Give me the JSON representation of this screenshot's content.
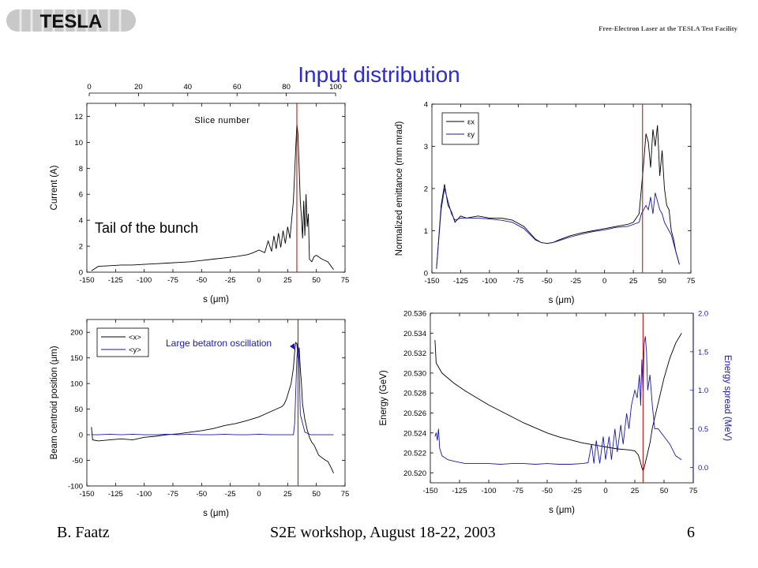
{
  "header": {
    "logo_text": "TESLA",
    "subtitle": "Free-Electron Laser at the TESLA Test Facility"
  },
  "slide": {
    "title": "Input distribution"
  },
  "footer": {
    "author": "B. Faatz",
    "event": "S2E workshop, August 18-22, 2003",
    "page": "6"
  },
  "colors": {
    "title": "#2b2bd0",
    "series_black": "#000000",
    "series_blue": "#1a1aa6",
    "marker_red": "#c00000",
    "right_axis": "#1a1aa6"
  },
  "chart_data": [
    {
      "type": "line",
      "title": "",
      "xlabel": "s (μm)",
      "ylabel": "Current (A)",
      "xlim": [
        -150,
        75
      ],
      "ylim": [
        0,
        13
      ],
      "xticks": [
        -150,
        -125,
        -100,
        -75,
        -50,
        -25,
        0,
        25,
        50,
        75
      ],
      "yticks": [
        0,
        2,
        4,
        6,
        8,
        10,
        12
      ],
      "top_axis": {
        "label": "Slice number",
        "lim": [
          0,
          100
        ],
        "ticks": [
          0,
          20,
          40,
          60,
          80,
          100
        ]
      },
      "vline": 33,
      "annotation": "Tail of the bunch",
      "series": [
        {
          "x": [
            -146,
            -140,
            -130,
            -120,
            -110,
            -100,
            -90,
            -80,
            -70,
            -60,
            -50,
            -40,
            -30,
            -20,
            -10,
            -5,
            0,
            5,
            8,
            11,
            13,
            15,
            17,
            19,
            21,
            23,
            25,
            27,
            29,
            30,
            31,
            32,
            33,
            34,
            35,
            36,
            37,
            38,
            39,
            40,
            41,
            42,
            43,
            44,
            46,
            48,
            50,
            55,
            60,
            65
          ],
          "y": [
            0.1,
            0.45,
            0.5,
            0.55,
            0.55,
            0.6,
            0.65,
            0.7,
            0.75,
            0.8,
            0.9,
            1.0,
            1.1,
            1.2,
            1.35,
            1.5,
            1.7,
            1.5,
            2.4,
            1.6,
            2.8,
            1.8,
            3.0,
            1.9,
            3.2,
            2.2,
            3.5,
            2.6,
            4.5,
            5.5,
            7.5,
            9.5,
            11.4,
            10.6,
            8.0,
            5.5,
            4.2,
            2.6,
            5.5,
            2.8,
            6.0,
            3.5,
            4.5,
            1.0,
            0.8,
            1.2,
            1.3,
            1.0,
            0.8,
            0.2
          ]
        }
      ]
    },
    {
      "type": "line",
      "title": "",
      "xlabel": "s (μm)",
      "ylabel": "Normalized emittance (mm mrad)",
      "xlim": [
        -150,
        75
      ],
      "ylim": [
        0,
        4
      ],
      "xticks": [
        -150,
        -125,
        -100,
        -75,
        -50,
        -25,
        0,
        25,
        50,
        75
      ],
      "yticks": [
        0,
        1,
        2,
        3,
        4
      ],
      "vline": 33,
      "legend": "top-left",
      "series": [
        {
          "name": "εx",
          "x": [
            -146,
            -142,
            -139,
            -136,
            -133,
            -130,
            -125,
            -120,
            -110,
            -100,
            -90,
            -80,
            -70,
            -60,
            -55,
            -50,
            -45,
            -40,
            -30,
            -20,
            -10,
            0,
            10,
            20,
            25,
            30,
            32,
            34,
            36,
            38,
            40,
            42,
            44,
            46,
            48,
            50,
            52,
            54,
            56,
            58,
            60,
            62,
            64,
            65
          ],
          "y": [
            0.1,
            1.6,
            2.1,
            1.6,
            1.45,
            1.2,
            1.35,
            1.3,
            1.35,
            1.3,
            1.3,
            1.25,
            1.1,
            0.8,
            0.72,
            0.7,
            0.72,
            0.78,
            0.88,
            0.95,
            1.0,
            1.05,
            1.1,
            1.15,
            1.2,
            1.4,
            2.0,
            2.6,
            3.3,
            3.1,
            2.5,
            3.4,
            3.0,
            3.5,
            2.3,
            2.9,
            2.0,
            1.6,
            1.5,
            1.0,
            0.8,
            0.5,
            0.3,
            0.2
          ]
        },
        {
          "name": "εy",
          "x": [
            -146,
            -142,
            -139,
            -136,
            -133,
            -130,
            -125,
            -120,
            -110,
            -100,
            -90,
            -80,
            -70,
            -60,
            -55,
            -50,
            -45,
            -40,
            -30,
            -20,
            -10,
            0,
            10,
            20,
            25,
            30,
            32,
            34,
            36,
            38,
            40,
            42,
            44,
            46,
            48,
            50,
            52,
            54,
            56,
            58,
            60,
            62,
            64,
            65
          ],
          "y": [
            0.1,
            1.5,
            2.0,
            1.7,
            1.4,
            1.25,
            1.3,
            1.3,
            1.3,
            1.28,
            1.25,
            1.2,
            1.05,
            0.78,
            0.72,
            0.7,
            0.72,
            0.76,
            0.85,
            0.92,
            0.98,
            1.02,
            1.08,
            1.1,
            1.15,
            1.2,
            1.4,
            1.5,
            1.6,
            1.5,
            1.8,
            1.4,
            1.9,
            1.7,
            1.5,
            1.4,
            1.2,
            1.1,
            1.0,
            0.9,
            0.7,
            0.5,
            0.3,
            0.2
          ]
        }
      ]
    },
    {
      "type": "line",
      "title": "",
      "xlabel": "s (μm)",
      "ylabel": "Beam centroid position (μm)",
      "xlim": [
        -150,
        75
      ],
      "ylim": [
        -100,
        225
      ],
      "xticks": [
        -150,
        -125,
        -100,
        -75,
        -50,
        -25,
        0,
        25,
        50,
        75
      ],
      "yticks": [
        -100,
        -50,
        0,
        50,
        100,
        150,
        200
      ],
      "vline": 34,
      "legend": "top-left",
      "annotation": "Large betatron oscillation",
      "series": [
        {
          "name": "<x>",
          "x": [
            -146,
            -145,
            -140,
            -130,
            -120,
            -110,
            -100,
            -90,
            -80,
            -70,
            -60,
            -50,
            -40,
            -30,
            -20,
            -10,
            0,
            5,
            10,
            15,
            20,
            22,
            24,
            26,
            28,
            30,
            31,
            32,
            33,
            34,
            35,
            36,
            37,
            38,
            40,
            42,
            44,
            46,
            48,
            50,
            52,
            55,
            58,
            60,
            63,
            65
          ],
          "y": [
            15,
            -10,
            -12,
            -10,
            -8,
            -10,
            -5,
            -3,
            0,
            2,
            5,
            8,
            12,
            18,
            22,
            28,
            35,
            40,
            45,
            50,
            55,
            60,
            70,
            85,
            100,
            130,
            160,
            180,
            178,
            150,
            170,
            130,
            100,
            60,
            30,
            10,
            -5,
            -15,
            -20,
            -30,
            -40,
            -45,
            -50,
            -52,
            -65,
            -75
          ]
        },
        {
          "name": "<y>",
          "x": [
            -146,
            -140,
            -130,
            -120,
            -110,
            -100,
            -90,
            -80,
            -70,
            -60,
            -50,
            -40,
            -30,
            -20,
            -10,
            0,
            10,
            20,
            30,
            31,
            32,
            33,
            34,
            35,
            36,
            40,
            45,
            50,
            55,
            60,
            65
          ],
          "y": [
            0,
            0,
            1,
            0,
            1,
            0,
            0,
            1,
            0,
            1,
            0,
            0,
            1,
            0,
            0,
            1,
            0,
            0,
            0,
            20,
            80,
            150,
            180,
            140,
            40,
            5,
            0,
            0,
            0,
            0,
            0
          ]
        }
      ]
    },
    {
      "type": "line",
      "title": "",
      "xlabel": "s (μm)",
      "ylabel": "Energy (GeV)",
      "y2label": "Energy spread (MeV)",
      "xlim": [
        -150,
        75
      ],
      "ylim": [
        20.519,
        20.536
      ],
      "y2lim": [
        -0.2,
        2.0
      ],
      "xticks": [
        -150,
        -125,
        -100,
        -75,
        -50,
        -25,
        0,
        25,
        50,
        75
      ],
      "yticks": [
        20.52,
        20.522,
        20.524,
        20.526,
        20.528,
        20.53,
        20.532,
        20.534,
        20.536
      ],
      "y2ticks": [
        0.0,
        0.5,
        1.0,
        1.5,
        2.0
      ],
      "vline": 32,
      "series": [
        {
          "name": "Energy",
          "axis": "left",
          "x": [
            -146,
            -145,
            -140,
            -130,
            -120,
            -110,
            -100,
            -90,
            -80,
            -70,
            -60,
            -50,
            -40,
            -30,
            -20,
            -10,
            0,
            10,
            20,
            25,
            28,
            30,
            31,
            32,
            33,
            35,
            38,
            40,
            45,
            50,
            55,
            60,
            65
          ],
          "y": [
            20.5333,
            20.531,
            20.53,
            20.529,
            20.5282,
            20.5275,
            20.5268,
            20.5262,
            20.5256,
            20.525,
            20.5245,
            20.524,
            20.5236,
            20.5233,
            20.523,
            20.5228,
            20.5226,
            20.5224,
            20.5223,
            20.5222,
            20.5218,
            20.521,
            20.5205,
            20.5202,
            20.5205,
            20.5215,
            20.523,
            20.5245,
            20.527,
            20.5295,
            20.5315,
            20.533,
            20.534
          ]
        },
        {
          "name": "Energy spread",
          "axis": "right",
          "x": [
            -146,
            -145,
            -144,
            -143,
            -142,
            -140,
            -135,
            -130,
            -120,
            -110,
            -100,
            -90,
            -80,
            -70,
            -60,
            -50,
            -40,
            -30,
            -20,
            -15,
            -12,
            -10,
            -8,
            -5,
            -2,
            0,
            3,
            5,
            8,
            10,
            13,
            15,
            18,
            20,
            22,
            25,
            27,
            29,
            30,
            31,
            32,
            33,
            34,
            35,
            36,
            38,
            40,
            42,
            45,
            50,
            55,
            60,
            65
          ],
          "y": [
            0.4,
            0.45,
            0.35,
            0.5,
            0.25,
            0.15,
            0.1,
            0.08,
            0.05,
            0.05,
            0.05,
            0.04,
            0.05,
            0.05,
            0.04,
            0.05,
            0.04,
            0.04,
            0.05,
            0.06,
            0.3,
            0.05,
            0.35,
            0.05,
            0.4,
            0.1,
            0.4,
            0.1,
            0.5,
            0.2,
            0.55,
            0.3,
            0.7,
            0.5,
            0.8,
            1.0,
            0.9,
            1.2,
            0.8,
            1.4,
            1.0,
            1.6,
            1.7,
            1.5,
            1.0,
            1.2,
            0.8,
            0.5,
            0.5,
            0.4,
            0.3,
            0.15,
            0.1
          ]
        }
      ]
    }
  ]
}
